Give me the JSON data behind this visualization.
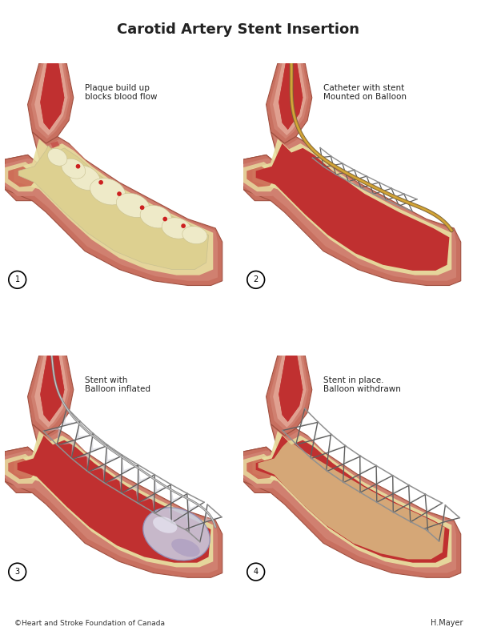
{
  "title": "Carotid Artery Stent Insertion",
  "title_fontsize": 13,
  "labels": {
    "1": "Plaque build up\nblocks blood flow",
    "2": "Catheter with stent\nMounted on Balloon",
    "3": "Stent with\nBalloon inflated",
    "4": "Stent in place.\nBalloon withdrawn"
  },
  "copyright": "©Heart and Stroke Foundation of Canada",
  "author": "H.Mayer",
  "bg": "#ffffff",
  "flesh_outer": "#C87060",
  "flesh_mid": "#D08070",
  "flesh_light": "#E0A090",
  "flesh_dark": "#A05040",
  "lumen_red": "#C03030",
  "lumen_bright": "#D04040",
  "cream_inner": "#E8DFA0",
  "cream_light": "#F0EAC0",
  "plaque_cream": "#DDD090",
  "plaque_white": "#EEEAC8",
  "stent_dark": "#606060",
  "stent_mid": "#909090",
  "stent_light": "#B0B0B0",
  "balloon_fill": "#C8C8DC",
  "balloon_edge": "#9090B8",
  "balloon_highlight": "#E8E8F4",
  "catheter_gold": "#C09030",
  "catheter_bright": "#E0B840",
  "text_color": "#222222"
}
